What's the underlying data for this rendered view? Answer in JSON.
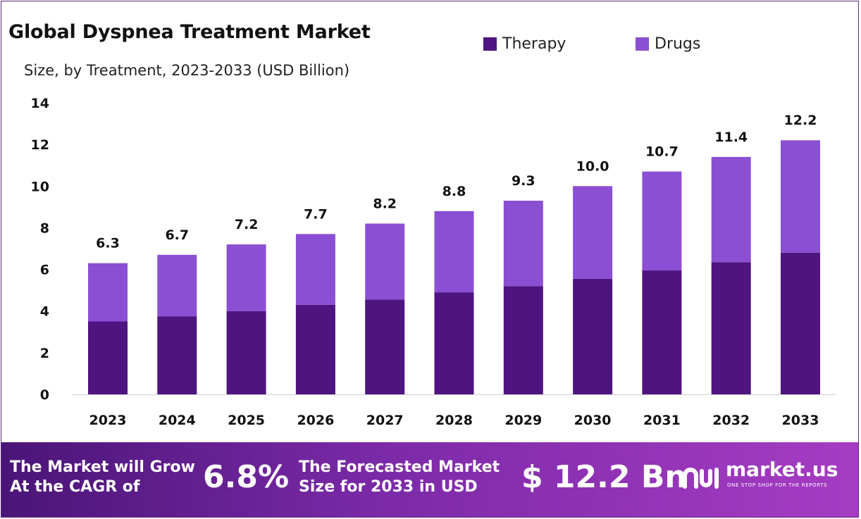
{
  "colors": {
    "therapy": "#4e1480",
    "drugs": "#8b4fd4",
    "banner_start": "#4a1578",
    "banner_end": "#a63cc3"
  },
  "header": {
    "title": "Global Dyspnea Treatment Market",
    "subtitle": "Size, by Treatment, 2023-2033 (USD Billion)"
  },
  "legend": [
    {
      "label": "Therapy",
      "color": "#4e1480"
    },
    {
      "label": "Drugs",
      "color": "#8b4fd4"
    }
  ],
  "chart_data": {
    "type": "bar",
    "stacked": true,
    "categories": [
      "2023",
      "2024",
      "2025",
      "2026",
      "2027",
      "2028",
      "2029",
      "2030",
      "2031",
      "2032",
      "2033"
    ],
    "series": [
      {
        "name": "Therapy",
        "values": [
          3.5,
          3.75,
          4.0,
          4.3,
          4.55,
          4.9,
          5.2,
          5.55,
          5.95,
          6.35,
          6.8
        ]
      },
      {
        "name": "Drugs",
        "values": [
          2.8,
          2.95,
          3.2,
          3.4,
          3.65,
          3.9,
          4.1,
          4.45,
          4.75,
          5.05,
          5.4
        ]
      }
    ],
    "totals": [
      "6.3",
      "6.7",
      "7.2",
      "7.7",
      "8.2",
      "8.8",
      "9.3",
      "10.0",
      "10.7",
      "11.4",
      "12.2"
    ],
    "ylim": [
      0,
      14
    ],
    "yticks": [
      0,
      2,
      4,
      6,
      8,
      10,
      12,
      14
    ],
    "grid": false,
    "legend_position": "top-right"
  },
  "banner": {
    "cagr_text_line1": "The Market will Grow",
    "cagr_text_line2": "At the CAGR of",
    "cagr_value": "6.8%",
    "forecast_text_line1": "The Forecasted Market",
    "forecast_text_line2": "Size for 2033 in USD",
    "forecast_value": "$ 12.2 Bn",
    "brand": "market.us",
    "tagline": "ONE STOP SHOP FOR THE REPORTS"
  }
}
